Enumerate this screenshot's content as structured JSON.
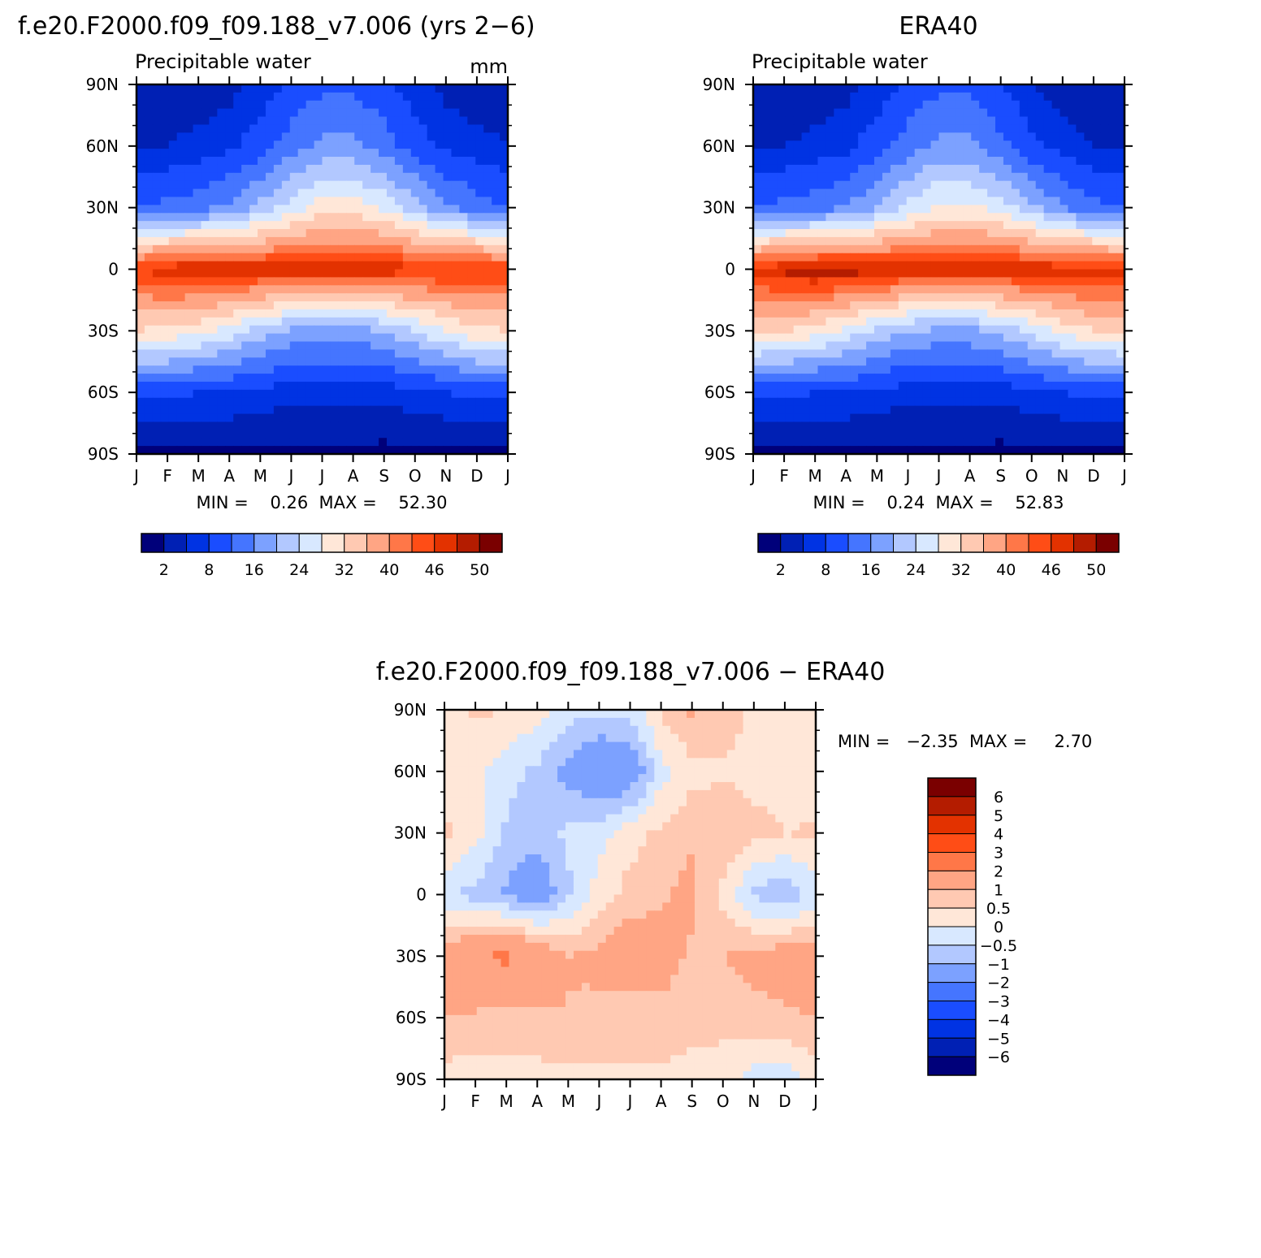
{
  "palette": [
    "#00007a",
    "#0020b4",
    "#0033e3",
    "#1a4dff",
    "#4575ff",
    "#7ca1ff",
    "#b2c8ff",
    "#d8e8ff",
    "#ffe7d8",
    "#ffc9b2",
    "#ffa584",
    "#ff7748",
    "#ff4d16",
    "#e33200",
    "#b41c00",
    "#7a0000"
  ],
  "month_labels": [
    "J",
    "F",
    "M",
    "A",
    "M",
    "J",
    "J",
    "A",
    "S",
    "O",
    "N",
    "D",
    "J"
  ],
  "lat_labels": [
    "90N",
    "60N",
    "30N",
    "0",
    "30S",
    "60S",
    "90S"
  ],
  "panels": {
    "model": {
      "title": "f.e20.F2000.f09_f09.188_v7.006 (yrs 2−6)",
      "subtitle": "Precipitable water",
      "units": "mm",
      "stats": "MIN =    0.26  MAX =    52.30"
    },
    "obs": {
      "title": "ERA40",
      "subtitle": "Precipitable water",
      "stats": "MIN =    0.24  MAX =    52.83"
    },
    "diff": {
      "title": "f.e20.F2000.f09_f09.188_v7.006 − ERA40",
      "stats": "MIN =   −2.35  MAX =     2.70"
    }
  },
  "colorbar_main_labels": [
    "2",
    "8",
    "16",
    "24",
    "32",
    "40",
    "46",
    "50"
  ],
  "colorbar_diff_labels": [
    "6",
    "5",
    "4",
    "3",
    "2",
    "1",
    "0.5",
    "0",
    "−0.5",
    "−1",
    "−2",
    "−3",
    "−4",
    "−5",
    "−6"
  ],
  "chart_data": [
    {
      "type": "heatmap",
      "title": "f.e20.F2000.f09_f09.188_v7.006 (yrs 2−6)",
      "subtitle": "Precipitable water",
      "units": "mm",
      "x": [
        "J",
        "F",
        "M",
        "A",
        "M",
        "J",
        "J",
        "A",
        "S",
        "O",
        "N",
        "D",
        "J"
      ],
      "y": [
        "90N",
        "60N",
        "30N",
        "0",
        "30S",
        "60S",
        "90S"
      ],
      "levels": [
        2,
        5,
        8,
        12,
        16,
        20,
        24,
        28,
        32,
        36,
        40,
        43,
        46,
        48,
        50
      ],
      "min": 0.26,
      "max": 52.3,
      "values": [
        [
          3,
          3,
          3,
          4,
          6,
          9,
          11,
          11,
          9,
          6,
          4,
          3,
          3
        ],
        [
          5,
          5,
          6,
          7,
          10,
          14,
          17,
          17,
          14,
          10,
          7,
          6,
          5
        ],
        [
          12,
          13,
          14,
          17,
          21,
          26,
          30,
          30,
          27,
          22,
          17,
          14,
          12
        ],
        [
          46,
          48,
          49,
          49,
          48,
          48,
          48,
          48,
          48,
          47,
          47,
          47,
          46
        ],
        [
          32,
          31,
          29,
          26,
          22,
          19,
          18,
          18,
          20,
          24,
          28,
          31,
          32
        ],
        [
          9,
          9,
          8,
          8,
          7,
          6,
          6,
          6,
          6,
          7,
          8,
          9,
          9
        ],
        [
          0.5,
          0.6,
          0.8,
          0.9,
          1,
          1.1,
          1.1,
          1.1,
          1,
          0.9,
          0.8,
          0.6,
          0.5
        ]
      ]
    },
    {
      "type": "heatmap",
      "title": "ERA40",
      "subtitle": "Precipitable water",
      "x": [
        "J",
        "F",
        "M",
        "A",
        "M",
        "J",
        "J",
        "A",
        "S",
        "O",
        "N",
        "D",
        "J"
      ],
      "y": [
        "90N",
        "60N",
        "30N",
        "0",
        "30S",
        "60S",
        "90S"
      ],
      "levels": [
        2,
        5,
        8,
        12,
        16,
        20,
        24,
        28,
        32,
        36,
        40,
        43,
        46,
        48,
        50
      ],
      "min": 0.24,
      "max": 52.83,
      "values": [
        [
          2,
          2,
          3,
          4,
          6,
          9,
          11,
          11,
          8,
          5,
          3,
          2,
          2
        ],
        [
          5,
          5,
          6,
          7,
          10,
          14,
          17,
          17,
          13,
          9,
          7,
          5,
          5
        ],
        [
          12,
          13,
          14,
          16,
          20,
          25,
          29,
          29,
          26,
          21,
          16,
          13,
          12
        ],
        [
          47,
          49,
          50,
          50,
          49,
          48,
          48,
          48,
          48,
          48,
          48,
          48,
          47
        ],
        [
          33,
          32,
          30,
          27,
          23,
          20,
          19,
          19,
          21,
          25,
          29,
          32,
          33
        ],
        [
          9,
          9,
          8,
          8,
          7,
          6,
          6,
          6,
          6,
          7,
          8,
          9,
          9
        ],
        [
          0.5,
          0.6,
          0.7,
          0.9,
          1,
          1.1,
          1.1,
          1.1,
          1,
          0.9,
          0.7,
          0.6,
          0.5
        ]
      ]
    },
    {
      "type": "heatmap",
      "title": "f.e20.F2000.f09_f09.188_v7.006 − ERA40",
      "x": [
        "J",
        "F",
        "M",
        "A",
        "M",
        "J",
        "J",
        "A",
        "S",
        "O",
        "N",
        "D",
        "J"
      ],
      "y": [
        "90N",
        "60N",
        "30N",
        "0",
        "30S",
        "60S",
        "90S"
      ],
      "levels": [
        -6,
        -5,
        -4,
        -3,
        -2,
        -1,
        -0.5,
        0,
        0.5,
        1,
        2,
        3,
        4,
        5,
        6
      ],
      "min": -2.35,
      "max": 2.7,
      "values": [
        [
          0.3,
          0.6,
          0.5,
          0.2,
          -0.3,
          -0.4,
          -0.3,
          0.6,
          1.1,
          0.8,
          0.4,
          0.3,
          0.3
        ],
        [
          0.2,
          0.1,
          -0.3,
          -0.6,
          -1.2,
          -1.8,
          -1.6,
          -0.2,
          0.3,
          0.4,
          0.3,
          0.2,
          0.2
        ],
        [
          0.6,
          0.2,
          -0.6,
          -0.8,
          -0.4,
          -0.2,
          0.3,
          0.6,
          0.9,
          1.0,
          0.7,
          0.5,
          0.6
        ],
        [
          -0.3,
          -0.7,
          -1.1,
          -1.5,
          -0.6,
          0.2,
          0.7,
          0.9,
          1.2,
          0.3,
          -0.6,
          -0.9,
          -0.3
        ],
        [
          1.3,
          1.9,
          2.2,
          1.6,
          1.0,
          1.2,
          1.5,
          1.3,
          0.9,
          1.0,
          1.2,
          1.4,
          1.3
        ],
        [
          1.0,
          0.9,
          0.8,
          0.9,
          1.0,
          0.8,
          0.7,
          0.8,
          0.7,
          0.7,
          0.8,
          0.9,
          1.0
        ],
        [
          0.3,
          0.2,
          0.3,
          0.3,
          0.3,
          0.4,
          0.4,
          0.4,
          0.3,
          0.2,
          -0.2,
          -0.3,
          0.3
        ]
      ]
    }
  ]
}
